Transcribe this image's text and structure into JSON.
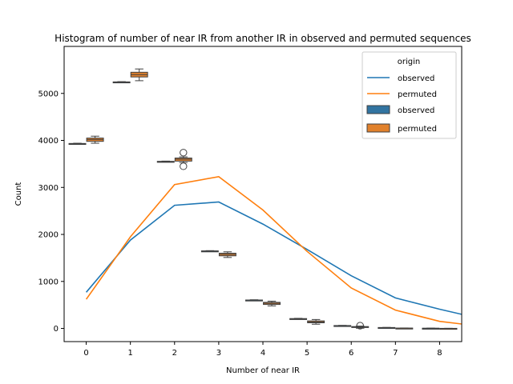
{
  "chart_data": {
    "type": "line+box",
    "title": "Histogram of number of near IR from another IR in observed and permuted sequences",
    "xlabel": "Number of near IR",
    "ylabel": "Count",
    "x_ticks": [
      "0",
      "1",
      "2",
      "3",
      "4",
      "5",
      "6",
      "7",
      "8"
    ],
    "y_ticks": [
      "0",
      "1000",
      "2000",
      "3000",
      "4000",
      "5000"
    ],
    "xlim": [
      -0.5,
      8.5
    ],
    "ylim": [
      -280,
      6000
    ],
    "legend": {
      "title": "origin",
      "placement": "upper-right",
      "entries": [
        {
          "label": "observed",
          "kind": "line",
          "color": "#1f77b4"
        },
        {
          "label": "permuted",
          "kind": "line",
          "color": "#ff7f0e"
        },
        {
          "label": "observed",
          "kind": "box",
          "color": "#3274a1"
        },
        {
          "label": "permuted",
          "kind": "box",
          "color": "#e1812c"
        }
      ]
    },
    "lines": [
      {
        "name": "observed",
        "color": "#1f77b4",
        "x": [
          0,
          1,
          2,
          3,
          4,
          5,
          6,
          7,
          8,
          8.5
        ],
        "y": [
          770,
          1880,
          2620,
          2690,
          2220,
          1680,
          1120,
          650,
          410,
          300
        ]
      },
      {
        "name": "permuted",
        "color": "#ff7f0e",
        "x": [
          0,
          1,
          2,
          3,
          4,
          5,
          6,
          7,
          8,
          8.5
        ],
        "y": [
          620,
          1950,
          3060,
          3230,
          2520,
          1640,
          860,
          390,
          150,
          95
        ]
      }
    ],
    "boxes": [
      {
        "origin": "observed",
        "x": 0,
        "q1": 3925,
        "median": 3930,
        "q3": 3935,
        "wlo": 3920,
        "whi": 3940,
        "fliers": []
      },
      {
        "origin": "permuted",
        "x": 0,
        "q1": 3980,
        "median": 4020,
        "q3": 4050,
        "wlo": 3940,
        "whi": 4090,
        "fliers": []
      },
      {
        "origin": "observed",
        "x": 1,
        "q1": 5235,
        "median": 5240,
        "q3": 5245,
        "wlo": 5230,
        "whi": 5250,
        "fliers": []
      },
      {
        "origin": "permuted",
        "x": 1,
        "q1": 5350,
        "median": 5400,
        "q3": 5450,
        "wlo": 5270,
        "whi": 5520,
        "fliers": []
      },
      {
        "origin": "observed",
        "x": 2,
        "q1": 3545,
        "median": 3550,
        "q3": 3555,
        "wlo": 3540,
        "whi": 3560,
        "fliers": []
      },
      {
        "origin": "permuted",
        "x": 2,
        "q1": 3560,
        "median": 3600,
        "q3": 3625,
        "wlo": 3530,
        "whi": 3650,
        "fliers": [
          3740,
          3450
        ]
      },
      {
        "origin": "observed",
        "x": 3,
        "q1": 1640,
        "median": 1645,
        "q3": 1650,
        "wlo": 1635,
        "whi": 1655,
        "fliers": []
      },
      {
        "origin": "permuted",
        "x": 3,
        "q1": 1545,
        "median": 1575,
        "q3": 1600,
        "wlo": 1510,
        "whi": 1630,
        "fliers": []
      },
      {
        "origin": "observed",
        "x": 4,
        "q1": 595,
        "median": 600,
        "q3": 605,
        "wlo": 590,
        "whi": 610,
        "fliers": []
      },
      {
        "origin": "permuted",
        "x": 4,
        "q1": 510,
        "median": 535,
        "q3": 555,
        "wlo": 480,
        "whi": 580,
        "fliers": []
      },
      {
        "origin": "observed",
        "x": 5,
        "q1": 200,
        "median": 205,
        "q3": 210,
        "wlo": 195,
        "whi": 215,
        "fliers": []
      },
      {
        "origin": "permuted",
        "x": 5,
        "q1": 120,
        "median": 140,
        "q3": 160,
        "wlo": 90,
        "whi": 190,
        "fliers": []
      },
      {
        "origin": "observed",
        "x": 6,
        "q1": 55,
        "median": 58,
        "q3": 62,
        "wlo": 50,
        "whi": 65,
        "fliers": []
      },
      {
        "origin": "permuted",
        "x": 6,
        "q1": 20,
        "median": 30,
        "q3": 40,
        "wlo": 5,
        "whi": 50,
        "fliers": [
          60
        ]
      },
      {
        "origin": "observed",
        "x": 7,
        "q1": 15,
        "median": 18,
        "q3": 20,
        "wlo": 12,
        "whi": 22,
        "fliers": []
      },
      {
        "origin": "permuted",
        "x": 7,
        "q1": 3,
        "median": 5,
        "q3": 8,
        "wlo": 0,
        "whi": 10,
        "fliers": []
      },
      {
        "origin": "observed",
        "x": 8,
        "q1": 3,
        "median": 4,
        "q3": 5,
        "wlo": 2,
        "whi": 6,
        "fliers": []
      },
      {
        "origin": "permuted",
        "x": 8,
        "q1": 0,
        "median": 1,
        "q3": 2,
        "wlo": 0,
        "whi": 3,
        "fliers": []
      }
    ],
    "grid": false
  }
}
